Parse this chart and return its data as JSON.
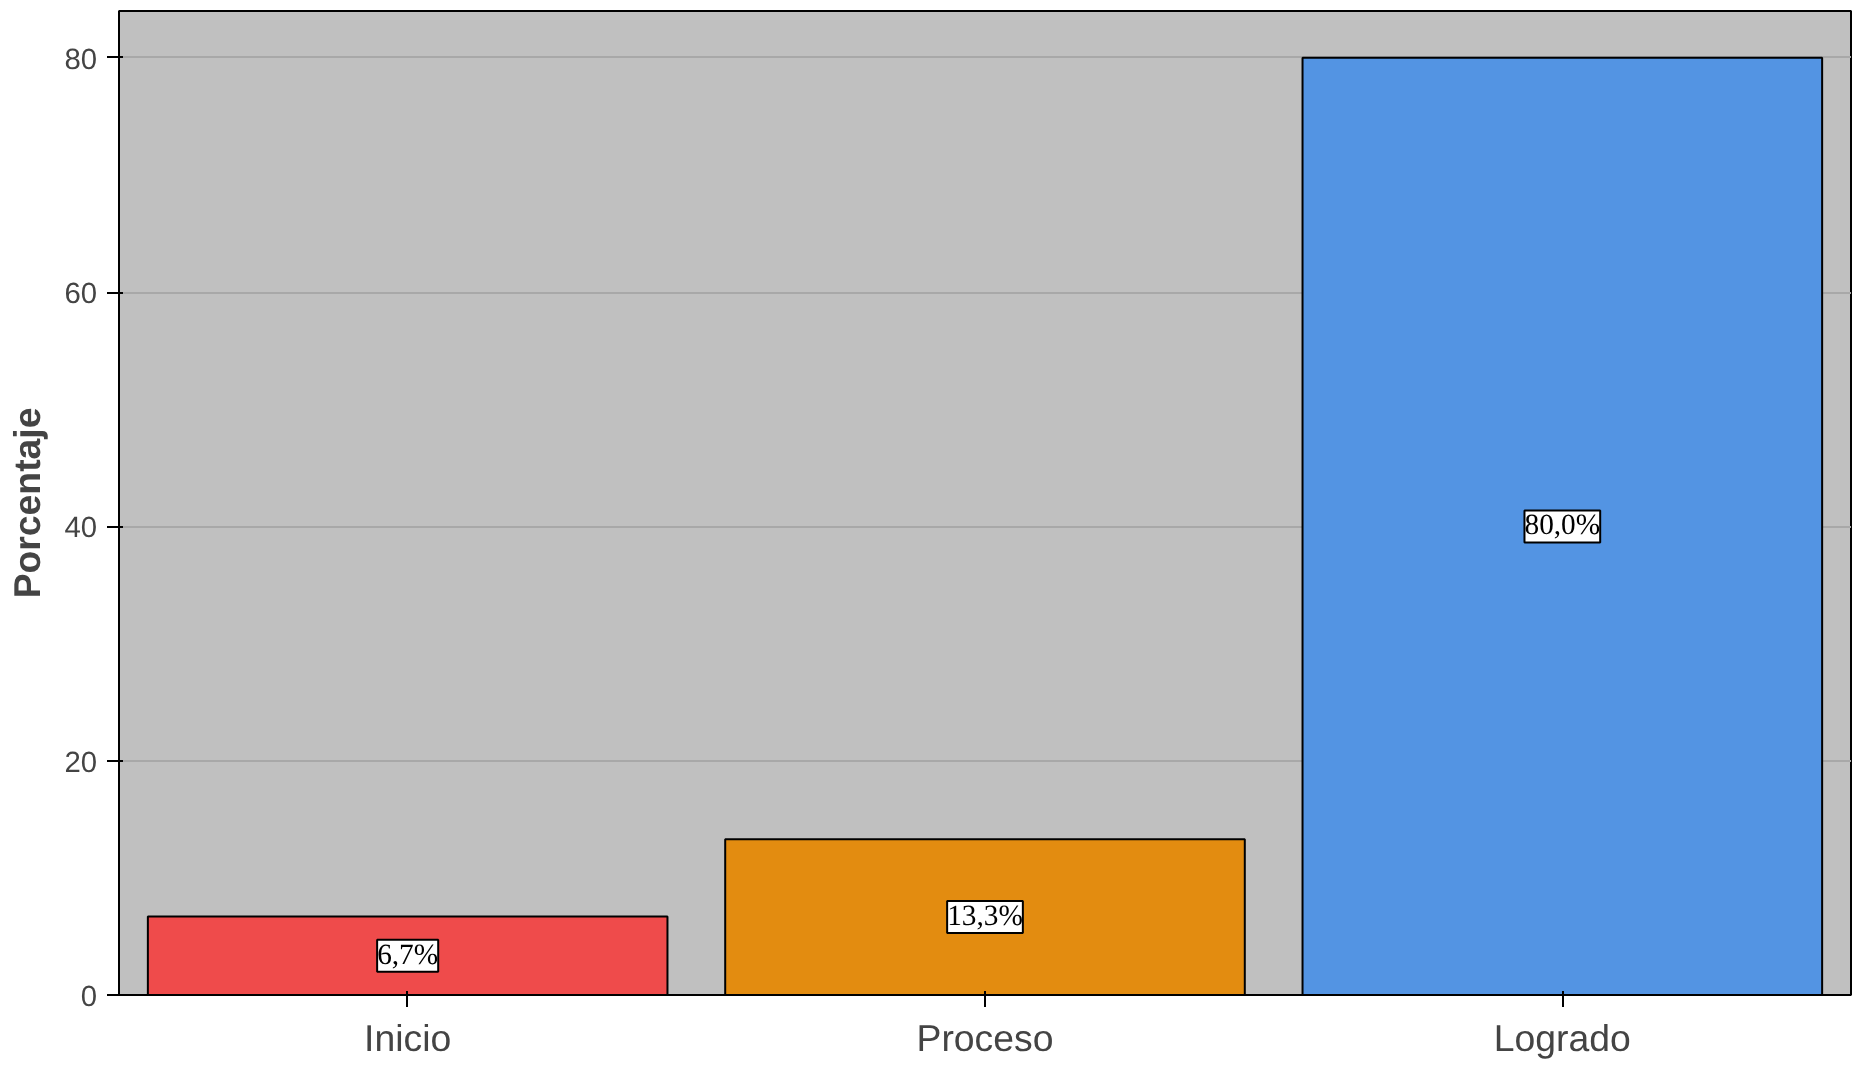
{
  "chart_data": {
    "type": "bar",
    "ylabel": "Porcentaje",
    "categories": [
      "Inicio",
      "Proceso",
      "Logrado"
    ],
    "values": [
      6.7,
      13.3,
      80.0
    ],
    "colors": [
      "#ef4b4b",
      "#e38c10",
      "#5394e3"
    ],
    "value_labels": [
      "6,7%",
      "13,3%",
      "80,0%"
    ],
    "ylim": [
      0,
      84
    ],
    "yticks": [
      0,
      20,
      40,
      60,
      80
    ],
    "grid": "y"
  }
}
